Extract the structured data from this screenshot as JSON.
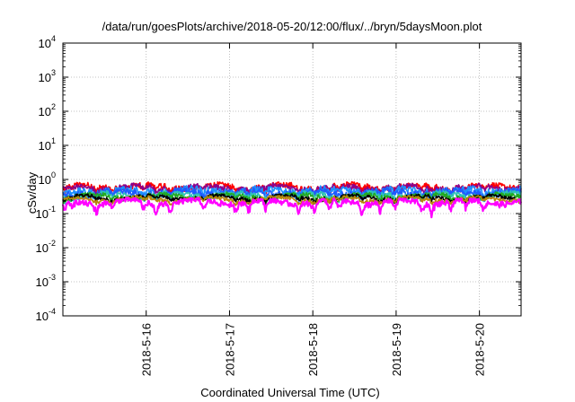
{
  "chart_data": {
    "type": "line",
    "title": "/data/run/goesPlots/archive/2018-05-20/12:00/flux/../bryn/5daysMoon.plot",
    "xlabel": "Coordinated Universal Time (UTC)",
    "ylabel": "cSv/day",
    "yscale": "log",
    "ylim": [
      0.0001,
      10000
    ],
    "y_ticks": [
      {
        "value": 0.0001,
        "mantissa": "10",
        "exp": "-4"
      },
      {
        "value": 0.001,
        "mantissa": "10",
        "exp": "-3"
      },
      {
        "value": 0.01,
        "mantissa": "10",
        "exp": "-2"
      },
      {
        "value": 0.1,
        "mantissa": "10",
        "exp": "-1"
      },
      {
        "value": 1,
        "mantissa": "10",
        "exp": "0"
      },
      {
        "value": 10,
        "mantissa": "10",
        "exp": "1"
      },
      {
        "value": 100,
        "mantissa": "10",
        "exp": "2"
      },
      {
        "value": 1000,
        "mantissa": "10",
        "exp": "3"
      },
      {
        "value": 10000,
        "mantissa": "10",
        "exp": "4"
      }
    ],
    "xlim": [
      "2018-05-15 00:00",
      "2018-05-20 12:00"
    ],
    "x_ticks": [
      "2018-5-16",
      "2018-5-17",
      "2018-5-18",
      "2018-5-19",
      "2018-5-20"
    ],
    "grid": true,
    "dips": [
      0.6,
      2.6,
      9.6,
      14.2,
      23.4,
      26.8,
      31.0,
      40.5,
      49.8,
      53.5,
      58.4,
      68.0,
      72.4,
      76.8,
      79.5,
      86.3,
      91.4,
      95.7,
      103.5,
      106.2,
      111.8,
      116.0,
      121.3
    ],
    "series": [
      {
        "color": "#ff0000",
        "base": 0.62,
        "amp": 0.9,
        "dip": 0.55
      },
      {
        "color": "#8b008b",
        "base": 0.58,
        "amp": 0.8,
        "dip": 0.55
      },
      {
        "color": "#1e90ff",
        "base": 0.48,
        "amp": 1.0,
        "dip": 0.6
      },
      {
        "color": "#1e5aff",
        "base": 0.42,
        "amp": 0.9,
        "dip": 0.55
      },
      {
        "color": "#2ec4b6",
        "base": 0.36,
        "amp": 0.7,
        "dip": 0.5
      },
      {
        "color": "#22aa22",
        "base": 0.33,
        "amp": 0.6,
        "dip": 0.45
      },
      {
        "color": "#000000",
        "base": 0.3,
        "amp": 0.5,
        "dip": 0.4
      },
      {
        "color": "#b8860b",
        "base": 0.27,
        "amp": 0.5,
        "dip": 0.4
      },
      {
        "color": "#ff00ff",
        "base": 0.22,
        "amp": 0.7,
        "dip": 1.0
      }
    ]
  }
}
